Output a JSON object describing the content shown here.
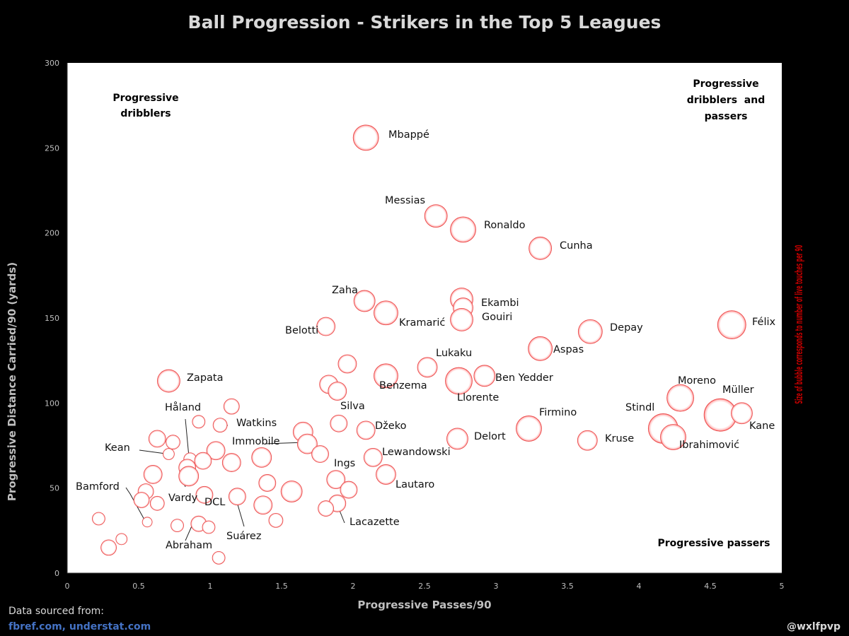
{
  "chart_data": {
    "type": "scatter",
    "title": "Ball Progression - Strikers in the Top 5 Leagues",
    "xlabel": "Progressive Passes/90",
    "ylabel": "Progressive Distance Carried/90 (yards)",
    "size_label": "Size of bubble corresponds to number of live touches per 90",
    "xlim": [
      0,
      5
    ],
    "ylim": [
      0,
      300
    ],
    "x_ticks": [
      "0",
      "0.5",
      "1",
      "1.5",
      "2",
      "2.5",
      "3",
      "3.5",
      "4",
      "4.5",
      "5"
    ],
    "y_ticks": [
      "0",
      "50",
      "100",
      "150",
      "200",
      "250",
      "300"
    ],
    "grid": false,
    "quadrants": {
      "top_left": [
        "Progressive",
        "dribblers"
      ],
      "top_right": [
        "Progressive",
        "dribblers  and",
        "passers"
      ],
      "bottom_right": [
        "Progressive passers"
      ]
    },
    "points": [
      {
        "name": "Mbappé",
        "x": 2.09,
        "y": 256,
        "size": 18
      },
      {
        "name": "Messias",
        "x": 2.58,
        "y": 210,
        "size": 16
      },
      {
        "name": "Ronaldo",
        "x": 2.77,
        "y": 202,
        "size": 18
      },
      {
        "name": "Cunha",
        "x": 3.31,
        "y": 191,
        "size": 16
      },
      {
        "name": "Zaha",
        "x": 2.08,
        "y": 160,
        "size": 15
      },
      {
        "name": "",
        "x": 2.76,
        "y": 161,
        "size": 16
      },
      {
        "name": "Ekambi",
        "x": 2.77,
        "y": 156,
        "size": 14
      },
      {
        "name": "Kramarić",
        "x": 2.23,
        "y": 153,
        "size": 17
      },
      {
        "name": "Gouiri",
        "x": 2.76,
        "y": 149,
        "size": 16
      },
      {
        "name": "Belotti",
        "x": 1.81,
        "y": 145,
        "size": 13
      },
      {
        "name": "Félix",
        "x": 4.65,
        "y": 146,
        "size": 20
      },
      {
        "name": "Depay",
        "x": 3.66,
        "y": 142,
        "size": 17
      },
      {
        "name": "Aspas",
        "x": 3.31,
        "y": 132,
        "size": 17
      },
      {
        "name": "",
        "x": 1.96,
        "y": 123,
        "size": 13
      },
      {
        "name": "Lukaku",
        "x": 2.52,
        "y": 121,
        "size": 14
      },
      {
        "name": "Benzema",
        "x": 2.23,
        "y": 116,
        "size": 17
      },
      {
        "name": "Ben Yedder",
        "x": 2.92,
        "y": 116,
        "size": 15
      },
      {
        "name": "Llorente",
        "x": 2.74,
        "y": 113,
        "size": 19
      },
      {
        "name": "Zapata",
        "x": 0.71,
        "y": 113,
        "size": 16
      },
      {
        "name": "",
        "x": 1.83,
        "y": 111,
        "size": 13
      },
      {
        "name": "",
        "x": 1.89,
        "y": 107,
        "size": 13
      },
      {
        "name": "Moreno",
        "x": 4.29,
        "y": 103,
        "size": 19
      },
      {
        "name": "",
        "x": 1.15,
        "y": 98,
        "size": 11
      },
      {
        "name": "Müller",
        "x": 4.57,
        "y": 93,
        "size": 23
      },
      {
        "name": "Kane",
        "x": 4.72,
        "y": 94,
        "size": 15
      },
      {
        "name": "Watkins",
        "x": 1.07,
        "y": 87,
        "size": 10
      },
      {
        "name": "Silva",
        "x": 1.9,
        "y": 88,
        "size": 12
      },
      {
        "name": "",
        "x": 0.92,
        "y": 89,
        "size": 9
      },
      {
        "name": "Firmino",
        "x": 3.23,
        "y": 85,
        "size": 18
      },
      {
        "name": "Stindl",
        "x": 4.17,
        "y": 85,
        "size": 21
      },
      {
        "name": "Džeko",
        "x": 2.09,
        "y": 84,
        "size": 13
      },
      {
        "name": "",
        "x": 1.65,
        "y": 83,
        "size": 14
      },
      {
        "name": "Ibrahimović",
        "x": 4.24,
        "y": 80,
        "size": 18
      },
      {
        "name": "Delort",
        "x": 2.73,
        "y": 79,
        "size": 15
      },
      {
        "name": "Kruse",
        "x": 3.64,
        "y": 78,
        "size": 14
      },
      {
        "name": "",
        "x": 0.63,
        "y": 79,
        "size": 12
      },
      {
        "name": "",
        "x": 0.74,
        "y": 77,
        "size": 10
      },
      {
        "name": "Immobile",
        "x": 1.68,
        "y": 76,
        "size": 14
      },
      {
        "name": "",
        "x": 1.04,
        "y": 72,
        "size": 13
      },
      {
        "name": "Kean",
        "x": 0.71,
        "y": 70,
        "size": 8
      },
      {
        "name": "",
        "x": 1.77,
        "y": 70,
        "size": 12
      },
      {
        "name": "Lewandowski",
        "x": 2.14,
        "y": 68,
        "size": 13
      },
      {
        "name": "Håland",
        "x": 0.86,
        "y": 67,
        "size": 9
      },
      {
        "name": "",
        "x": 1.36,
        "y": 68,
        "size": 14
      },
      {
        "name": "",
        "x": 0.95,
        "y": 66,
        "size": 12
      },
      {
        "name": "",
        "x": 1.15,
        "y": 65,
        "size": 13
      },
      {
        "name": "",
        "x": 0.84,
        "y": 62,
        "size": 12
      },
      {
        "name": "",
        "x": 0.6,
        "y": 58,
        "size": 13
      },
      {
        "name": "Lautaro",
        "x": 2.23,
        "y": 58,
        "size": 14
      },
      {
        "name": "",
        "x": 0.85,
        "y": 57,
        "size": 14
      },
      {
        "name": "Ings",
        "x": 1.88,
        "y": 55,
        "size": 13
      },
      {
        "name": "",
        "x": 1.4,
        "y": 53,
        "size": 12
      },
      {
        "name": "",
        "x": 1.97,
        "y": 49,
        "size": 12
      },
      {
        "name": "",
        "x": 1.57,
        "y": 48,
        "size": 15
      },
      {
        "name": "",
        "x": 0.55,
        "y": 48,
        "size": 11
      },
      {
        "name": "",
        "x": 0.96,
        "y": 46,
        "size": 12
      },
      {
        "name": "Suárez",
        "x": 1.19,
        "y": 45,
        "size": 12
      },
      {
        "name": "",
        "x": 0.52,
        "y": 43,
        "size": 11
      },
      {
        "name": "",
        "x": 0.63,
        "y": 41,
        "size": 10
      },
      {
        "name": "Lacazette",
        "x": 1.89,
        "y": 41,
        "size": 12
      },
      {
        "name": "",
        "x": 1.37,
        "y": 40,
        "size": 13
      },
      {
        "name": "",
        "x": 1.81,
        "y": 38,
        "size": 11
      },
      {
        "name": "",
        "x": 0.22,
        "y": 32,
        "size": 9
      },
      {
        "name": "",
        "x": 1.46,
        "y": 31,
        "size": 10
      },
      {
        "name": "Bamford",
        "x": 0.56,
        "y": 30,
        "size": 7
      },
      {
        "name": "DCL",
        "x": 0.92,
        "y": 29,
        "size": 11
      },
      {
        "name": "",
        "x": 0.77,
        "y": 28,
        "size": 9
      },
      {
        "name": "",
        "x": 0.99,
        "y": 27,
        "size": 9
      },
      {
        "name": "",
        "x": 0.38,
        "y": 20,
        "size": 8
      },
      {
        "name": "",
        "x": 0.29,
        "y": 15,
        "size": 11
      },
      {
        "name": "Abraham",
        "x": 1.06,
        "y": 9,
        "size": 9
      }
    ]
  },
  "footer": {
    "source_label": "Data sourced from:",
    "source_links": "fbref.com, understat.com",
    "credit": "@wxlfpvp"
  }
}
